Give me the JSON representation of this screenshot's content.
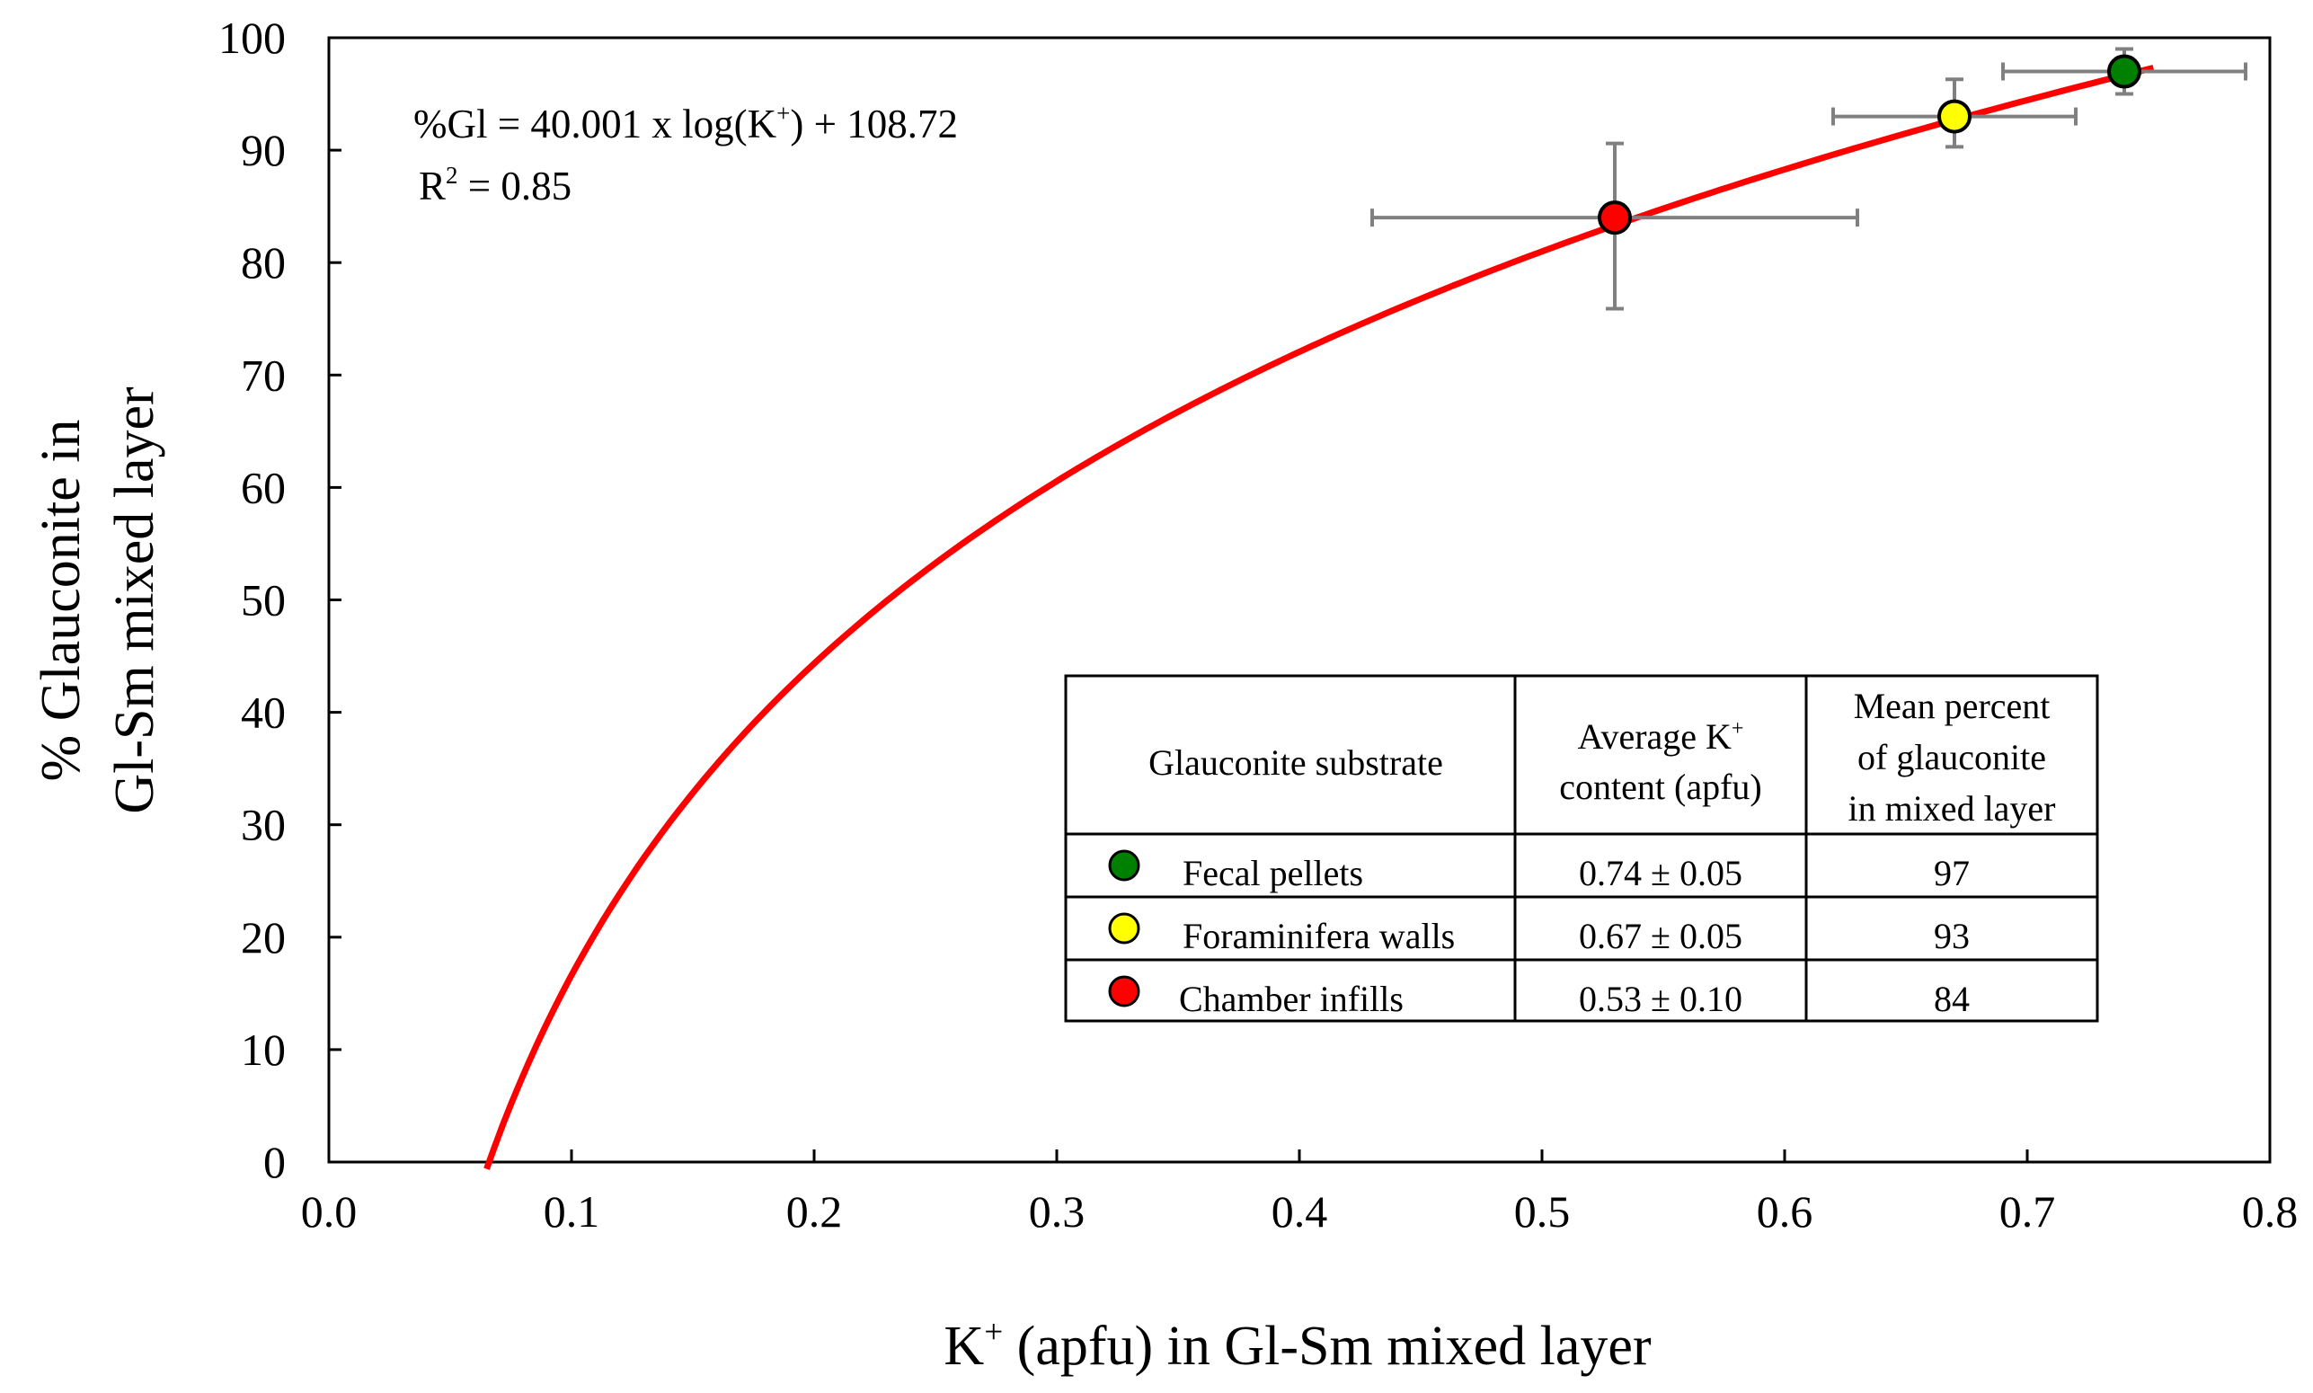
{
  "chart_data": {
    "type": "scatter",
    "xlabel": {
      "base": "K",
      "sup": "+",
      "rest": " (apfu) in Gl-Sm mixed layer"
    },
    "ylabel_line1": "% Glauconite in",
    "ylabel_line2": "Gl-Sm mixed layer",
    "xlim": [
      0,
      0.8
    ],
    "ylim": [
      0,
      100
    ],
    "x_ticks": [
      0.0,
      0.1,
      0.2,
      0.3,
      0.4,
      0.5,
      0.6,
      0.7,
      0.8
    ],
    "x_tick_labels": [
      "0.0",
      "0.1",
      "0.2",
      "0.3",
      "0.4",
      "0.5",
      "0.6",
      "0.7",
      "0.8"
    ],
    "y_ticks": [
      0,
      10,
      20,
      30,
      40,
      50,
      60,
      70,
      80,
      90,
      100
    ],
    "y_tick_labels": [
      "0",
      "10",
      "20",
      "30",
      "40",
      "50",
      "60",
      "70",
      "80",
      "90",
      "100"
    ],
    "grid": false,
    "fit": {
      "coef_a": 40.001,
      "coef_b": 108.72,
      "x_range": [
        0.065,
        0.752
      ],
      "color": "#ff0000",
      "equation": {
        "pre": "%Gl = 40.001 x log(K",
        "sup": "+",
        "post": ") + 108.72"
      },
      "r2": {
        "pre": "R",
        "sup": "2",
        "post": " = 0.85"
      }
    },
    "points": [
      {
        "name": "Fecal pellets",
        "x": 0.74,
        "y": 97,
        "x_err": 0.05,
        "y_err": [
          97.0,
          95.0
        ],
        "y_err_hi": 99.0,
        "color": "#008000"
      },
      {
        "name": "Foraminifera walls",
        "x": 0.67,
        "y": 93,
        "x_err": 0.05,
        "y_err_lo": 90.3,
        "y_err_hi": 96.3,
        "color": "#ffff00"
      },
      {
        "name": "Chamber infills",
        "x": 0.53,
        "y": 84,
        "x_err": 0.1,
        "y_err_lo": 75.9,
        "y_err_hi": 90.6,
        "color": "#ff0000"
      }
    ],
    "error_bar_color": "#808080",
    "table": {
      "headers": [
        [
          "Glauconite substrate"
        ],
        [
          "Average K+",
          "content (apfu)"
        ],
        [
          "Mean percent",
          "of glauconite",
          "in mixed layer"
        ]
      ],
      "header2_line1": {
        "pre": "Average K",
        "sup": "+"
      },
      "rows": [
        {
          "substrate": "Fecal pellets",
          "k": "0.74 ± 0.05",
          "pct": "97",
          "color": "#008000"
        },
        {
          "substrate": "Foraminifera walls",
          "k": "0.67 ± 0.05",
          "pct": "93",
          "color": "#ffff00"
        },
        {
          "substrate": "Chamber infills",
          "k": "0.53 ± 0.10",
          "pct": "84",
          "color": "#ff0000"
        }
      ]
    }
  }
}
